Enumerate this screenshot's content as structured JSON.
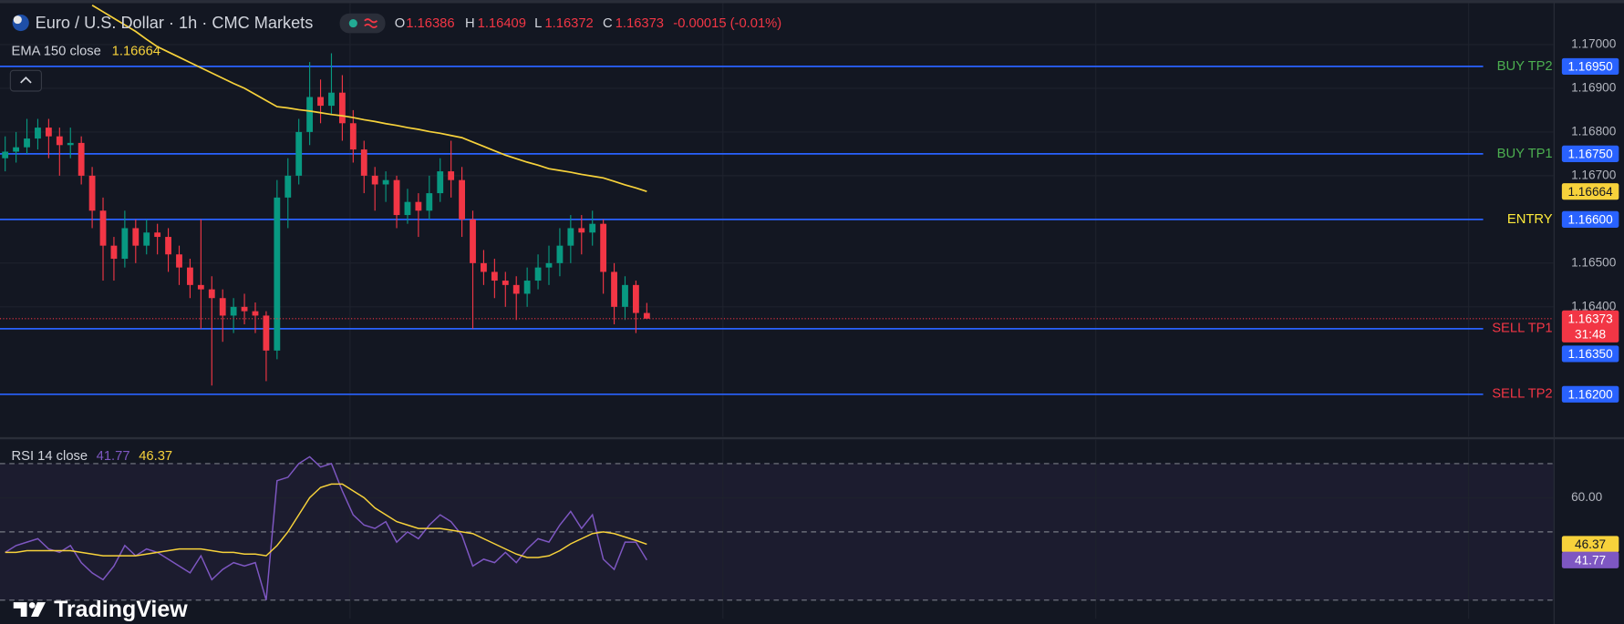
{
  "header": {
    "symbol": "Euro / U.S. Dollar · 1h · CMC Markets",
    "ohlc": [
      {
        "label": "O",
        "value": 1.16386
      },
      {
        "label": "H",
        "value": 1.16409
      },
      {
        "label": "L",
        "value": 1.16372
      },
      {
        "label": "C",
        "value": 1.16373
      }
    ],
    "change": "-0.00015 (-0.01%)"
  },
  "brand": "TradingView",
  "chart_data": [
    {
      "type": "candlestick",
      "categories": [
        null,
        null,
        null,
        null,
        null,
        null,
        null,
        null,
        null,
        null,
        null,
        null,
        null,
        null,
        null,
        null,
        null,
        null,
        null,
        null,
        null,
        null,
        null,
        null,
        null,
        null,
        null,
        null,
        null,
        null,
        null,
        null,
        null,
        null,
        null,
        null,
        null,
        null,
        null,
        null,
        null,
        null,
        null,
        null,
        null,
        null,
        null,
        null,
        null,
        null,
        null,
        null,
        null,
        null,
        null,
        null,
        null,
        null,
        null,
        null
      ],
      "open": [
        1.1674,
        1.16755,
        1.16765,
        1.16785,
        1.1681,
        1.1679,
        1.1677,
        1.16775,
        1.167,
        1.1662,
        1.1654,
        1.1651,
        1.1658,
        1.1654,
        1.1657,
        1.1656,
        1.1652,
        1.1649,
        1.1645,
        1.1644,
        1.1642,
        1.1638,
        1.164,
        1.1639,
        1.1638,
        1.163,
        1.1665,
        1.167,
        1.168,
        1.1688,
        1.1686,
        1.1689,
        1.1682,
        1.1676,
        1.167,
        1.1668,
        1.1669,
        1.1661,
        1.1664,
        1.1662,
        1.1666,
        1.1671,
        1.1669,
        1.166,
        1.165,
        1.1648,
        1.1646,
        1.1645,
        1.1643,
        1.1646,
        1.1649,
        1.165,
        1.1654,
        1.1658,
        1.1657,
        1.1659,
        1.1648,
        1.164,
        1.1645,
        1.16386
      ],
      "high": [
        1.1679,
        1.168,
        1.1683,
        1.1683,
        1.1683,
        1.1681,
        1.1681,
        1.1679,
        1.1672,
        1.1665,
        1.1656,
        1.1662,
        1.166,
        1.166,
        1.1659,
        1.1658,
        1.1654,
        1.1651,
        1.166,
        1.1647,
        1.1644,
        1.1642,
        1.1643,
        1.1641,
        1.1639,
        1.1669,
        1.1674,
        1.1683,
        1.1696,
        1.1692,
        1.1698,
        1.1693,
        1.1685,
        1.1678,
        1.1672,
        1.1671,
        1.167,
        1.1667,
        1.1666,
        1.167,
        1.1674,
        1.1678,
        1.1672,
        1.1662,
        1.1653,
        1.1651,
        1.1648,
        1.1647,
        1.1649,
        1.1652,
        1.1654,
        1.1658,
        1.1661,
        1.1661,
        1.1662,
        1.166,
        1.165,
        1.1647,
        1.1646,
        1.16409
      ],
      "low": [
        1.1671,
        1.1673,
        1.1675,
        1.1676,
        1.1674,
        1.167,
        1.1674,
        1.1668,
        1.1658,
        1.1646,
        1.1646,
        1.1649,
        1.165,
        1.1652,
        1.1652,
        1.1648,
        1.1645,
        1.1642,
        1.1635,
        1.1622,
        1.1632,
        1.1634,
        1.1636,
        1.1634,
        1.1623,
        1.1628,
        1.1658,
        1.1668,
        1.1677,
        1.1682,
        1.1684,
        1.1678,
        1.1673,
        1.1666,
        1.1662,
        1.1664,
        1.1658,
        1.1659,
        1.1656,
        1.166,
        1.1664,
        1.1665,
        1.1656,
        1.1635,
        1.1645,
        1.1642,
        1.164,
        1.1637,
        1.164,
        1.1644,
        1.1645,
        1.1647,
        1.165,
        1.1652,
        1.1654,
        1.1643,
        1.1636,
        1.1637,
        1.1634,
        1.16372
      ],
      "close": [
        1.16755,
        1.16765,
        1.16785,
        1.1681,
        1.1679,
        1.1677,
        1.16775,
        1.167,
        1.1662,
        1.1654,
        1.1651,
        1.1658,
        1.1654,
        1.1657,
        1.1656,
        1.1652,
        1.1649,
        1.1645,
        1.1644,
        1.1642,
        1.1638,
        1.164,
        1.1639,
        1.1638,
        1.163,
        1.1665,
        1.167,
        1.168,
        1.1688,
        1.1686,
        1.1689,
        1.1682,
        1.1676,
        1.167,
        1.1668,
        1.1669,
        1.1661,
        1.1664,
        1.1662,
        1.1666,
        1.1671,
        1.1669,
        1.166,
        1.165,
        1.1648,
        1.1646,
        1.1645,
        1.1643,
        1.1646,
        1.1649,
        1.165,
        1.1654,
        1.1658,
        1.1657,
        1.1659,
        1.1648,
        1.164,
        1.1645,
        1.16386,
        1.16373
      ],
      "up_color": "#089981",
      "down_color": "#f23645",
      "series": [
        {
          "name": "EMA 150 close",
          "color": "#f7d23b",
          "values": [
            null,
            null,
            null,
            null,
            null,
            null,
            null,
            null,
            1.1709,
            1.17075,
            1.1706,
            1.17045,
            1.1703,
            1.17012,
            1.16995,
            1.16983,
            1.16971,
            1.16959,
            1.16947,
            1.16935,
            1.16923,
            1.16911,
            1.169,
            1.16886,
            1.16872,
            1.16858,
            1.16855,
            1.16851,
            1.16848,
            1.16844,
            1.1684,
            1.16837,
            1.16833,
            1.16828,
            1.16824,
            1.16819,
            1.16815,
            1.1681,
            1.16806,
            1.16801,
            1.16797,
            1.16792,
            1.16787,
            1.16777,
            1.16767,
            1.16757,
            1.16747,
            1.16739,
            1.16731,
            1.16724,
            1.16716,
            1.16712,
            1.16708,
            1.16703,
            1.16699,
            1.16695,
            1.16687,
            1.16679,
            1.16672,
            1.16664
          ]
        }
      ],
      "levels": [
        {
          "name": "BUY TP2",
          "price": {
            "value": 1.1695,
            "label": "1.16950"
          },
          "color": "#4caf50"
        },
        {
          "name": "BUY TP1",
          "price": {
            "value": 1.1675,
            "label": "1.16750"
          },
          "color": "#4caf50"
        },
        {
          "name": "ENTRY",
          "price": {
            "value": 1.166,
            "label": "1.16600"
          },
          "color": "#ffeb3b"
        },
        {
          "name": "SELL TP1",
          "price": {
            "value": 1.1635,
            "label": "1.16350"
          },
          "color": "#f23645"
        },
        {
          "name": "SELL TP2",
          "price": {
            "value": 1.162,
            "label": "1.16200"
          },
          "color": "#f23645"
        }
      ],
      "level_line_color": "#2962ff",
      "countdown": "31:48",
      "ylim": [
        1.16103,
        1.1709
      ],
      "yticks": [
        {
          "value": 1.164,
          "label": "1.16400"
        },
        {
          "value": 1.165,
          "label": "1.16500"
        },
        {
          "value": 1.167,
          "label": "1.16700"
        },
        {
          "value": 1.168,
          "label": "1.16800"
        },
        {
          "value": 1.169,
          "label": "1.16900"
        },
        {
          "value": 1.17,
          "label": "1.17000"
        }
      ],
      "grid": true
    },
    {
      "type": "line",
      "title": "RSI 14 close",
      "series": [
        {
          "color": "#7e57c2",
          "values": [
            44,
            46,
            47,
            48,
            45,
            44,
            46,
            41,
            38,
            36,
            40,
            46,
            43,
            45,
            44,
            42,
            40,
            38,
            43,
            36,
            39,
            41,
            40,
            41,
            30,
            65,
            66,
            70,
            72,
            69,
            70,
            62,
            55,
            52,
            51,
            53,
            47,
            50,
            48,
            52,
            55,
            53,
            49,
            40,
            42,
            41,
            44,
            41,
            45,
            48,
            47,
            52,
            56,
            51,
            55,
            42,
            39,
            47,
            47,
            41.77
          ]
        },
        {
          "color": "#f7d23b",
          "values": [
            44,
            44,
            44.5,
            44.5,
            44.5,
            44.5,
            44.5,
            44,
            43.5,
            43,
            43,
            43,
            43,
            43.5,
            44,
            44.5,
            45,
            45,
            45,
            44.5,
            44,
            44,
            43.5,
            43.5,
            43,
            46,
            50,
            55,
            60,
            63,
            64,
            64,
            62,
            60,
            57,
            55,
            53,
            52,
            51,
            51,
            51,
            50.5,
            50,
            49.5,
            48,
            46.5,
            45,
            43.5,
            42.5,
            42.5,
            43,
            44.5,
            46.5,
            48,
            49.5,
            50,
            49.5,
            48.5,
            47.5,
            46.37
          ]
        }
      ],
      "levels": [
        70,
        50,
        30
      ],
      "ylim": [
        24.55,
        76.97
      ],
      "yticks": [
        {
          "value": 60,
          "label": "60.00"
        }
      ],
      "grid": true
    }
  ]
}
